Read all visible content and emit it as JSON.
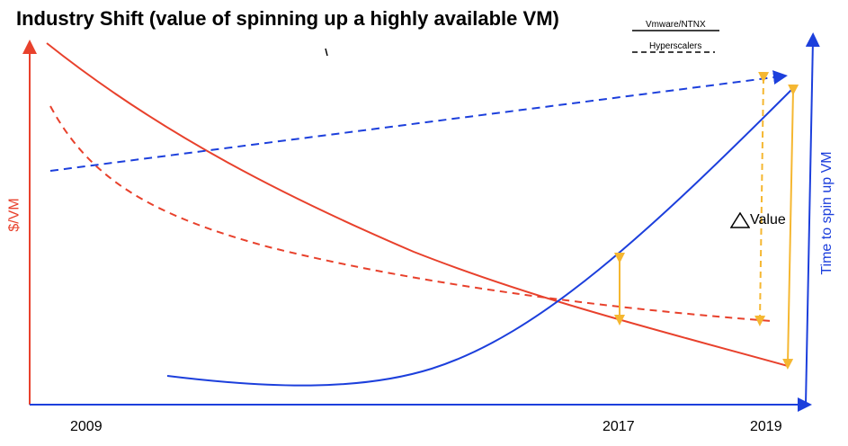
{
  "title": "Industry Shift (value of spinning up a highly available VM)",
  "legend": {
    "solid_label": "Vmware/NTNX",
    "dashed_label": "Hyperscalers"
  },
  "left_axis_label": "$/VM",
  "right_axis_label": "Time to spin up VM",
  "annotation": "Value",
  "years": {
    "start": "2009",
    "mid": "2017",
    "end": "2019"
  },
  "stray_mark": "\\",
  "colors": {
    "cost": "#e8412c",
    "time": "#1c3fdc",
    "value_gap": "#f5b731",
    "text": "#000000"
  }
}
